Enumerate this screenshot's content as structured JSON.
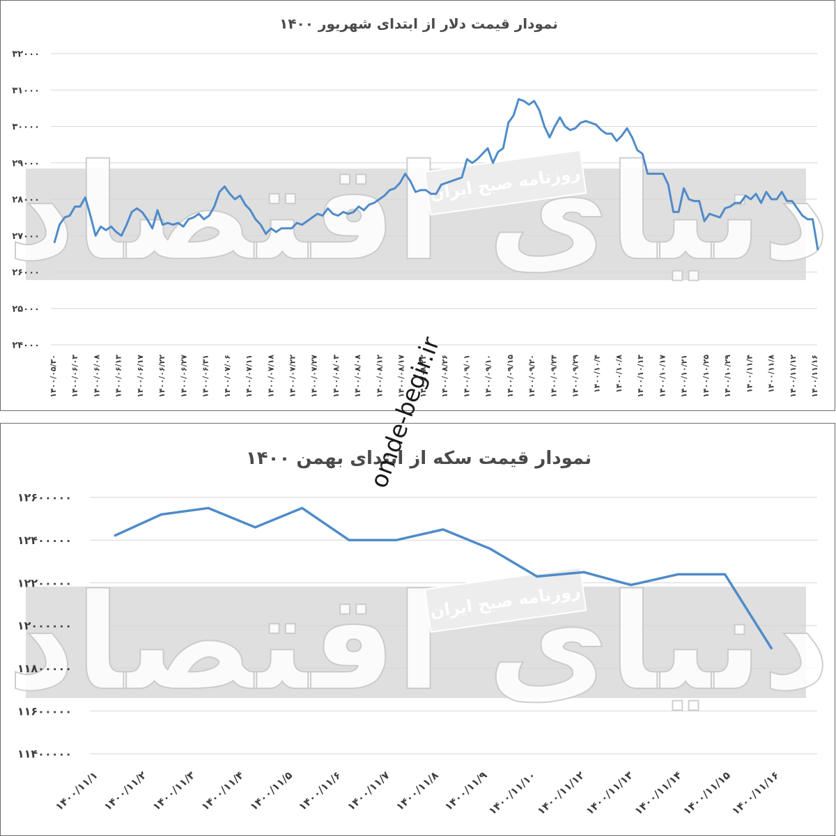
{
  "chart_data": [
    {
      "type": "line",
      "title": "نمودار قیمت دلار از ابتدای شهریور ۱۴۰۰",
      "ylim": [
        24000,
        32000
      ],
      "y_ticks": [
        "۳۲۰۰۰",
        "۳۱۰۰۰",
        "۳۰۰۰۰",
        "۲۹۰۰۰",
        "۲۸۰۰۰",
        "۲۷۰۰۰",
        "۲۶۰۰۰",
        "۲۵۰۰۰",
        "۲۴۰۰۰"
      ],
      "x_tick_labels": [
        "۱۴۰۰/۰۵/۳۰",
        "۱۴۰۰/۰۶/۰۳",
        "۱۴۰۰/۰۶/۰۸",
        "۱۴۰۰/۰۶/۱۳",
        "۱۴۰۰/۰۶/۱۷",
        "۱۴۰۰/۰۶/۲۲",
        "۱۴۰۰/۰۶/۲۷",
        "۱۴۰۰/۰۶/۳۱",
        "۱۴۰۰/۰۷/۰۶",
        "۱۴۰۰/۰۷/۱۱",
        "۱۴۰۰/۰۷/۱۸",
        "۱۴۰۰/۰۷/۲۲",
        "۱۴۰۰/۰۷/۲۷",
        "۱۴۰۰/۰۸/۰۳",
        "۱۴۰۰/۰۸/۰۸",
        "۱۴۰۰/۰۸/۱۲",
        "۱۴۰۰/۰۸/۱۷",
        "۱۴۰۰/۰۸/۲۲",
        "۱۴۰۰/۰۸/۲۶",
        "۱۴۰۰/۰۹/۰۱",
        "۱۴۰۰/۰۹/۱۰",
        "۱۴۰۰/۰۹/۱۵",
        "۱۴۰۰/۰۹/۲۰",
        "۱۴۰۰/۰۹/۲۴",
        "۱۴۰۰/۰۹/۲۹",
        "۱۴۰۰/۱۰/۴",
        "۱۴۰۰/۱۰/۸",
        "۱۴۰۰/۱۰/۱۳",
        "۱۴۰۰/۱۰/۱۷",
        "۱۴۰۰/۱۰/۲۱",
        "۱۴۰۰/۱۰/۲۵",
        "۱۴۰۰/۱۰/۲۹",
        "۱۴۰۰/۱۱/۴",
        "۱۴۰۰/۱۱/۸",
        "۱۴۰۰/۱۱/۱۲",
        "۱۴۰۰/۱۱/۱۶"
      ],
      "values": [
        26800,
        27300,
        27500,
        27550,
        27800,
        27800,
        28050,
        27550,
        27000,
        27250,
        27150,
        27250,
        27100,
        27000,
        27300,
        27650,
        27750,
        27650,
        27450,
        27200,
        27700,
        27300,
        27350,
        27300,
        27350,
        27250,
        27450,
        27500,
        27600,
        27450,
        27550,
        27800,
        28200,
        28350,
        28150,
        28000,
        28100,
        27850,
        27700,
        27450,
        27300,
        27050,
        27200,
        27100,
        27200,
        27200,
        27200,
        27350,
        27300,
        27400,
        27500,
        27600,
        27550,
        27750,
        27600,
        27550,
        27650,
        27600,
        27650,
        27800,
        27700,
        27850,
        27900,
        28000,
        28100,
        28250,
        28300,
        28450,
        28700,
        28500,
        28200,
        28250,
        28250,
        28150,
        28150,
        28400,
        28450,
        28500,
        28550,
        28600,
        29100,
        29000,
        29100,
        29250,
        29400,
        29000,
        29300,
        29400,
        30100,
        30300,
        30750,
        30700,
        30600,
        30700,
        30450,
        30000,
        29700,
        30000,
        30250,
        30000,
        29900,
        29950,
        30100,
        30150,
        30100,
        30050,
        29900,
        29800,
        29800,
        29600,
        29750,
        29950,
        29700,
        29350,
        29250,
        28700,
        28700,
        28700,
        28700,
        28400,
        27650,
        27650,
        28300,
        28000,
        27950,
        27950,
        27400,
        27600,
        27550,
        27500,
        27750,
        27800,
        27900,
        27900,
        28100,
        28000,
        28150,
        27900,
        28200,
        28000,
        28000,
        28200,
        27950,
        27950,
        27750,
        27550,
        27450,
        27450,
        26600
      ]
    },
    {
      "type": "line",
      "title": "نمودار قیمت سکه از ابتدای بهمن ۱۴۰۰",
      "ylim": [
        11400000,
        12600000
      ],
      "y_ticks": [
        "۱۲۶۰۰۰۰۰",
        "۱۲۴۰۰۰۰۰",
        "۱۲۲۰۰۰۰۰",
        "۱۲۰۰۰۰۰۰",
        "۱۱۸۰۰۰۰۰",
        "۱۱۶۰۰۰۰۰",
        "۱۱۴۰۰۰۰۰"
      ],
      "categories": [
        "۱۴۰۰/۱۱/۱",
        "۱۴۰۰/۱۱/۲",
        "۱۴۰۰/۱۱/۳",
        "۱۴۰۰/۱۱/۴",
        "۱۴۰۰/۱۱/۵",
        "۱۴۰۰/۱۱/۶",
        "۱۴۰۰/۱۱/۷",
        "۱۴۰۰/۱۱/۸",
        "۱۴۰۰/۱۱/۹",
        "۱۴۰۰/۱۱/۱۰",
        "۱۴۰۰/۱۱/۱۲",
        "۱۴۰۰/۱۱/۱۳",
        "۱۴۰۰/۱۱/۱۴",
        "۱۴۰۰/۱۱/۱۵",
        "۱۴۰۰/۱۱/۱۶"
      ],
      "values": [
        12420000,
        12520000,
        12550000,
        12460000,
        12550000,
        12400000,
        12400000,
        12450000,
        12360000,
        12230000,
        12250000,
        12190000,
        12240000,
        12240000,
        11890000
      ]
    }
  ],
  "colors": {
    "line": "#4f8bc9",
    "band": "#d9d9d9",
    "grid": "#d6d6d6",
    "text": "#3c3c3c"
  },
  "watermarks": {
    "source_label": "روزنامه صبح ایران",
    "brand": "دنیای اقتصاد",
    "site": "omde-begir.ir"
  }
}
